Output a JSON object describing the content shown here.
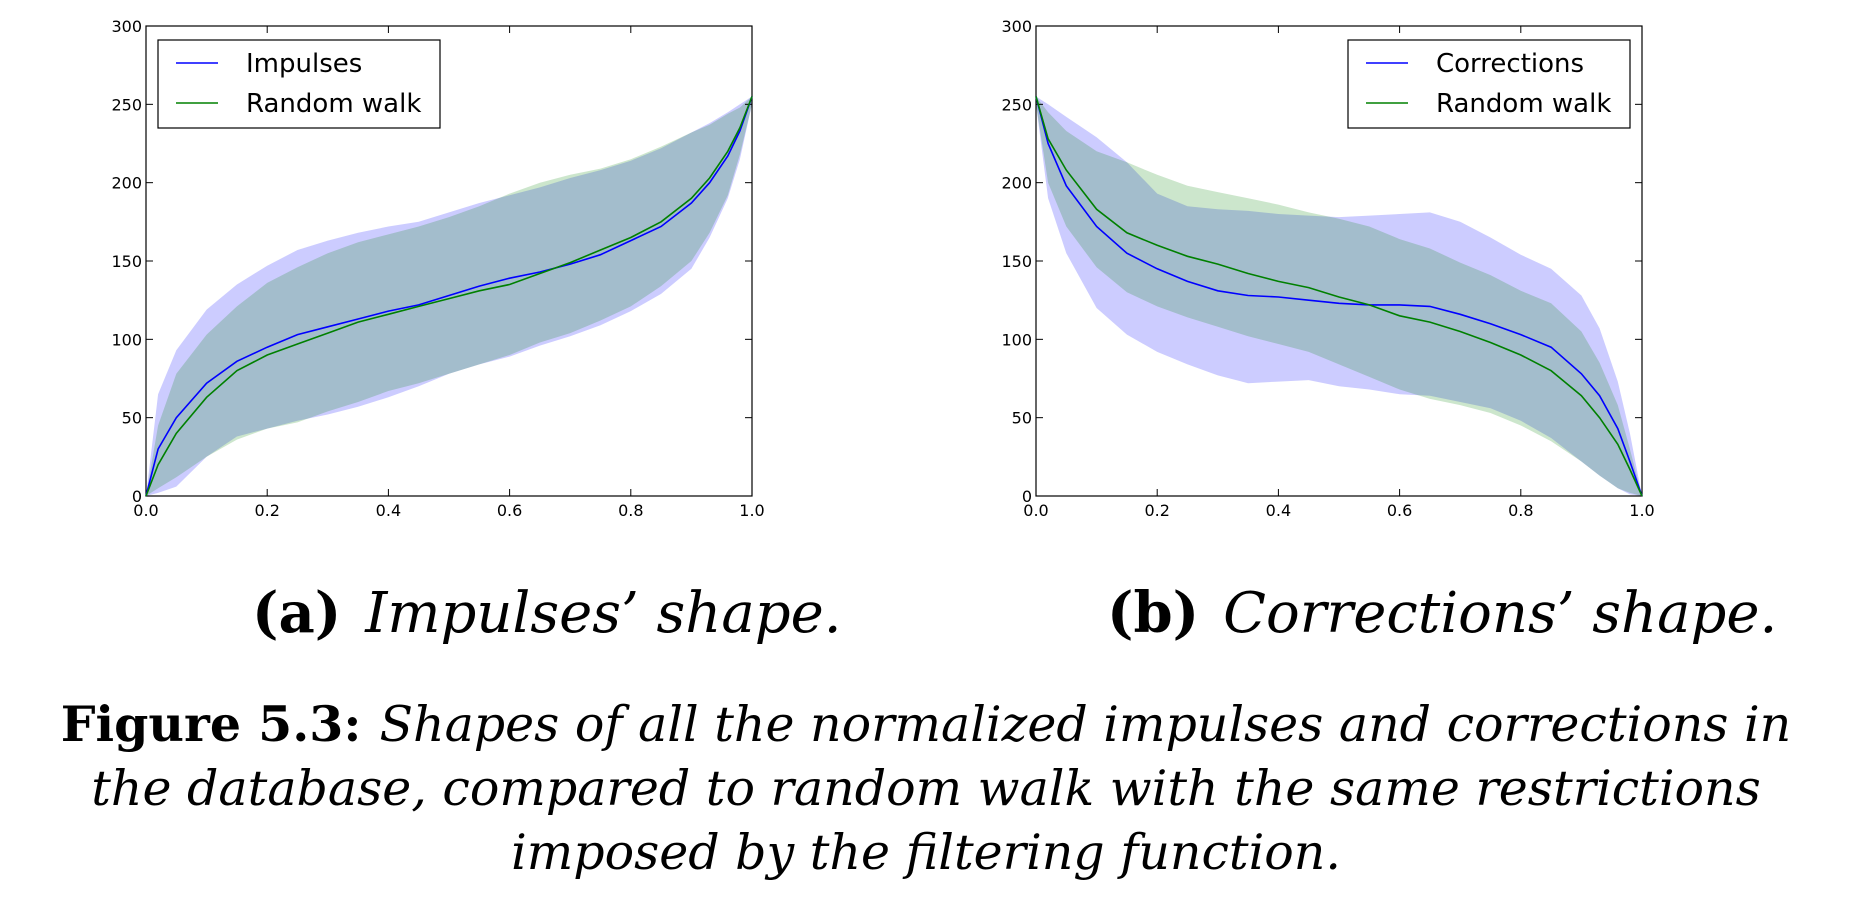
{
  "chart_data": [
    {
      "type": "line",
      "xlim": [
        0.0,
        1.0
      ],
      "ylim": [
        0,
        300
      ],
      "xticks": [
        "0.0",
        "0.2",
        "0.4",
        "0.6",
        "0.8",
        "1.0"
      ],
      "yticks": [
        "0",
        "50",
        "100",
        "150",
        "200",
        "250",
        "300"
      ],
      "legend_position": "top-left",
      "grid": false,
      "x": [
        0.0,
        0.02,
        0.05,
        0.1,
        0.15,
        0.2,
        0.25,
        0.3,
        0.35,
        0.4,
        0.45,
        0.5,
        0.55,
        0.6,
        0.65,
        0.7,
        0.75,
        0.8,
        0.85,
        0.9,
        0.93,
        0.96,
        0.98,
        1.0
      ],
      "series": [
        {
          "name": "Impulses",
          "color": "#0000ff",
          "values": [
            0,
            30,
            50,
            72,
            86,
            95,
            103,
            108,
            113,
            118,
            122,
            128,
            134,
            139,
            143,
            148,
            154,
            163,
            172,
            187,
            200,
            217,
            233,
            255
          ],
          "lower": [
            0,
            2,
            6,
            25,
            38,
            43,
            48,
            52,
            57,
            63,
            70,
            78,
            84,
            89,
            96,
            102,
            109,
            118,
            129,
            145,
            165,
            190,
            215,
            250
          ],
          "upper": [
            0,
            65,
            93,
            119,
            135,
            147,
            157,
            163,
            168,
            172,
            175,
            181,
            187,
            192,
            197,
            203,
            208,
            214,
            222,
            232,
            238,
            245,
            250,
            255
          ]
        },
        {
          "name": "Random walk",
          "color": "#008000",
          "values": [
            0,
            20,
            40,
            63,
            80,
            90,
            97,
            104,
            111,
            116,
            121,
            126,
            131,
            135,
            142,
            149,
            157,
            165,
            175,
            190,
            203,
            220,
            235,
            255
          ],
          "lower": [
            0,
            5,
            12,
            25,
            36,
            43,
            47,
            54,
            60,
            67,
            72,
            78,
            84,
            90,
            98,
            104,
            112,
            121,
            134,
            150,
            168,
            192,
            218,
            250
          ],
          "upper": [
            0,
            45,
            78,
            103,
            121,
            136,
            146,
            155,
            162,
            167,
            172,
            178,
            185,
            193,
            200,
            205,
            209,
            215,
            223,
            232,
            237,
            244,
            248,
            255
          ]
        }
      ]
    },
    {
      "type": "line",
      "xlim": [
        0.0,
        1.0
      ],
      "ylim": [
        0,
        300
      ],
      "xticks": [
        "0.0",
        "0.2",
        "0.4",
        "0.6",
        "0.8",
        "1.0"
      ],
      "yticks": [
        "0",
        "50",
        "100",
        "150",
        "200",
        "250",
        "300"
      ],
      "legend_position": "top-right",
      "grid": false,
      "x": [
        0.0,
        0.02,
        0.05,
        0.1,
        0.15,
        0.2,
        0.25,
        0.3,
        0.35,
        0.4,
        0.45,
        0.5,
        0.55,
        0.6,
        0.65,
        0.7,
        0.75,
        0.8,
        0.85,
        0.9,
        0.93,
        0.96,
        0.98,
        1.0
      ],
      "series": [
        {
          "name": "Corrections",
          "color": "#0000ff",
          "values": [
            255,
            225,
            198,
            172,
            155,
            145,
            137,
            131,
            128,
            127,
            125,
            123,
            122,
            122,
            121,
            116,
            110,
            103,
            95,
            78,
            64,
            43,
            22,
            0
          ],
          "lower": [
            250,
            190,
            155,
            120,
            103,
            92,
            84,
            77,
            72,
            73,
            74,
            70,
            68,
            65,
            64,
            60,
            56,
            48,
            37,
            22,
            13,
            5,
            1,
            0
          ],
          "upper": [
            255,
            250,
            242,
            229,
            213,
            193,
            185,
            183,
            182,
            180,
            179,
            178,
            179,
            180,
            181,
            175,
            165,
            154,
            145,
            128,
            107,
            73,
            40,
            0
          ]
        },
        {
          "name": "Random walk",
          "color": "#008000",
          "values": [
            255,
            228,
            208,
            183,
            168,
            160,
            153,
            148,
            142,
            137,
            133,
            127,
            122,
            115,
            111,
            105,
            98,
            90,
            80,
            64,
            50,
            33,
            17,
            0
          ],
          "lower": [
            250,
            200,
            172,
            146,
            130,
            121,
            114,
            108,
            102,
            97,
            92,
            84,
            76,
            68,
            62,
            58,
            53,
            45,
            35,
            22,
            13,
            5,
            2,
            0
          ],
          "upper": [
            255,
            245,
            233,
            220,
            213,
            205,
            198,
            194,
            190,
            186,
            181,
            177,
            172,
            164,
            158,
            149,
            141,
            131,
            123,
            105,
            85,
            58,
            30,
            0
          ]
        }
      ]
    }
  ],
  "subcaptions": [
    {
      "label": "(a)",
      "text": "Impulses’ shape."
    },
    {
      "label": "(b)",
      "text": "Corrections’ shape."
    }
  ],
  "caption": {
    "label": "Figure 5.3:",
    "text": "Shapes of all the normalized impulses and corrections in the database, compared to random walk with the same restrictions imposed by the filtering function."
  }
}
